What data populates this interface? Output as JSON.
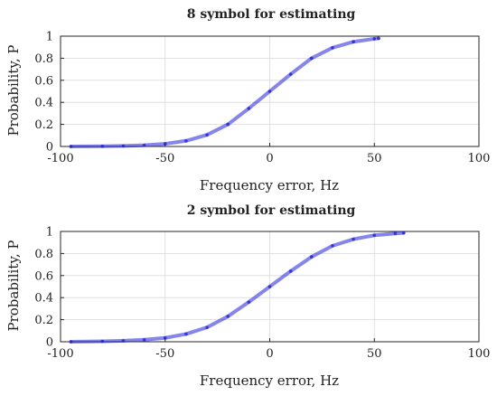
{
  "chart_data": [
    {
      "type": "line",
      "title": "8 symbol for estimating",
      "xlabel": "Frequency error, Hz",
      "ylabel": "Probability, P",
      "xlim": [
        -100,
        100
      ],
      "ylim": [
        0,
        1
      ],
      "xticks": [
        "-100",
        "-50",
        "0",
        "50",
        "100"
      ],
      "yticks": [
        "0",
        "0.2",
        "0.4",
        "0.6",
        "0.8",
        "1"
      ],
      "grid": true,
      "x": [
        -95,
        -80,
        -70,
        -60,
        -50,
        -40,
        -30,
        -20,
        -10,
        0,
        10,
        20,
        30,
        40,
        50,
        52
      ],
      "values": [
        0.0,
        0.002,
        0.005,
        0.011,
        0.024,
        0.051,
        0.105,
        0.2,
        0.345,
        0.5,
        0.655,
        0.8,
        0.895,
        0.949,
        0.976,
        0.98
      ]
    },
    {
      "type": "line",
      "title": "2 symbol for estimating",
      "xlabel": "Frequency error, Hz",
      "ylabel": "Probability, P",
      "xlim": [
        -100,
        100
      ],
      "ylim": [
        0,
        1
      ],
      "xticks": [
        "-100",
        "-50",
        "0",
        "50",
        "100"
      ],
      "yticks": [
        "0",
        "0.2",
        "0.4",
        "0.6",
        "0.8",
        "1"
      ],
      "grid": true,
      "x": [
        -95,
        -80,
        -70,
        -60,
        -50,
        -40,
        -30,
        -20,
        -10,
        0,
        10,
        20,
        30,
        40,
        50,
        60,
        64
      ],
      "values": [
        0.0,
        0.004,
        0.009,
        0.018,
        0.035,
        0.07,
        0.13,
        0.23,
        0.36,
        0.5,
        0.64,
        0.77,
        0.87,
        0.93,
        0.965,
        0.982,
        0.987
      ]
    }
  ],
  "colors": {
    "line": "#2020d8",
    "grid": "#d9d9d9",
    "axis": "#262626"
  }
}
